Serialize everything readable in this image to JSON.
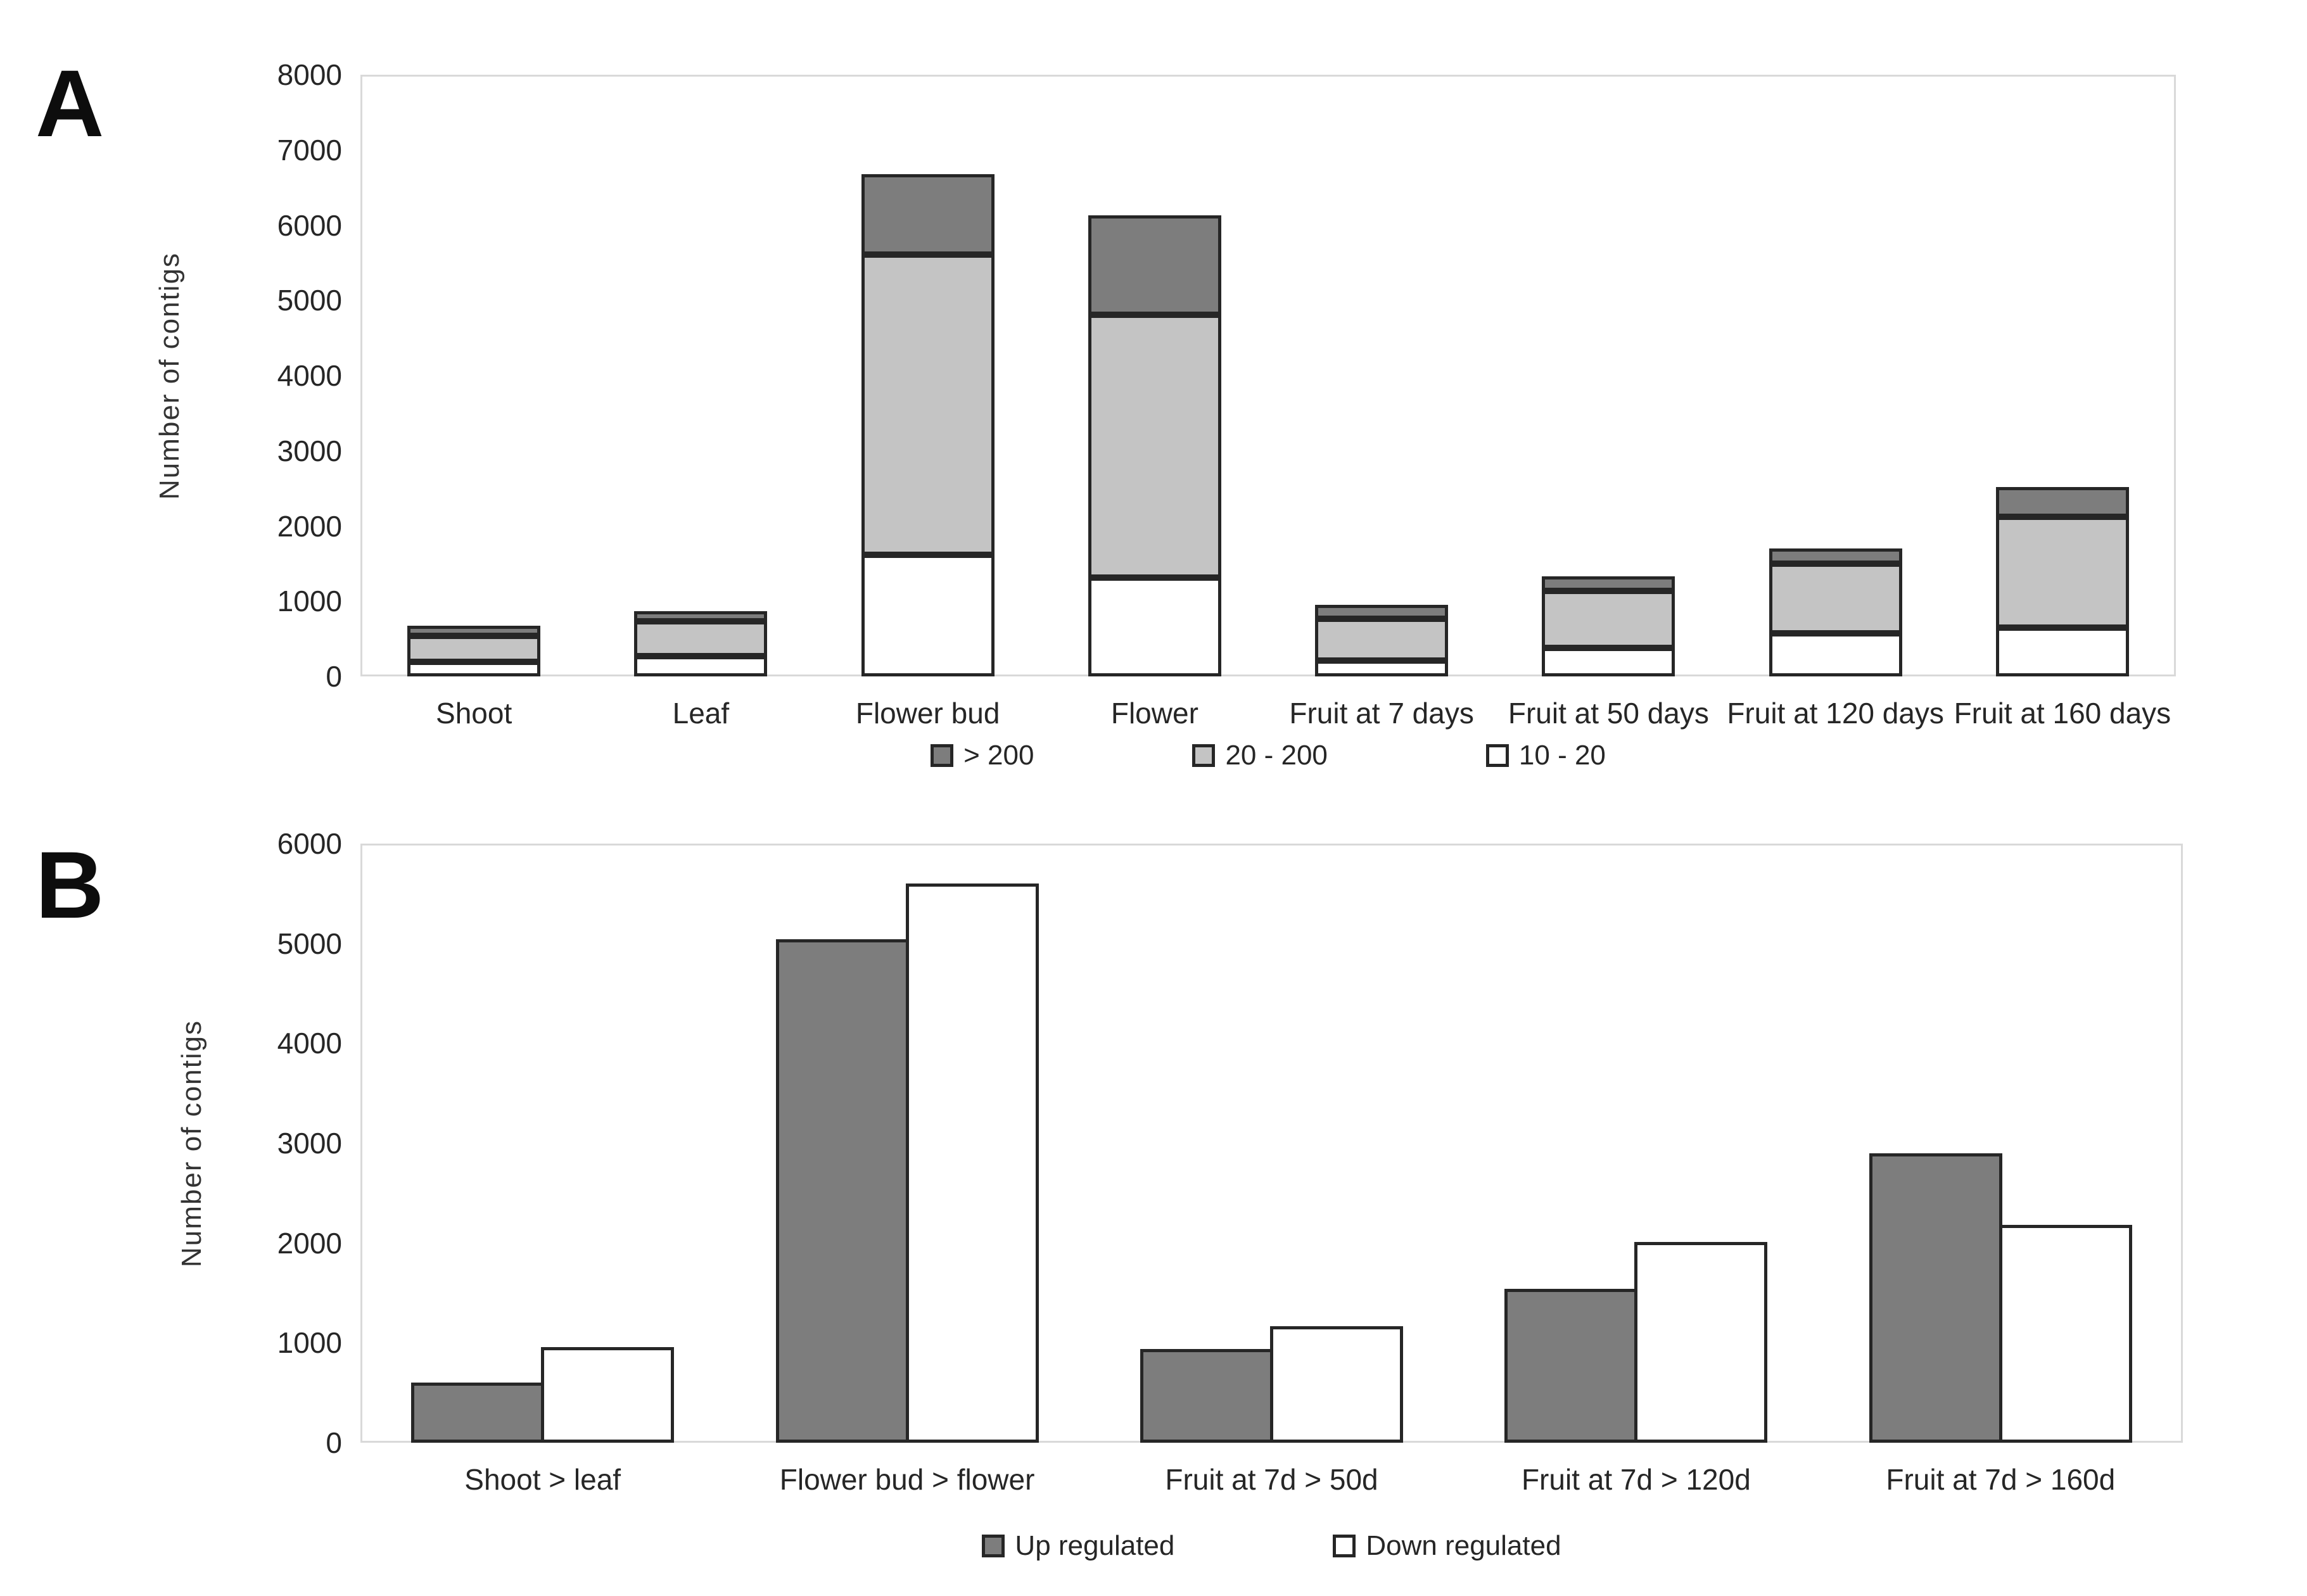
{
  "panels": [
    {
      "letter": "A"
    },
    {
      "letter": "B"
    }
  ],
  "colors": {
    "dark_gray": "#7d7d7d",
    "light_gray": "#c4c4c4",
    "white": "#ffffff",
    "bar_border": "#262626",
    "plot_border": "#d9d9d9",
    "text": "#262626"
  },
  "chart_data": [
    {
      "id": "A",
      "type": "bar",
      "stacked": true,
      "title": "",
      "xlabel": "",
      "ylabel": "Number of contigs",
      "ylim": [
        0,
        8000
      ],
      "yticks": [
        0,
        1000,
        2000,
        3000,
        4000,
        5000,
        6000,
        7000,
        8000
      ],
      "grid": false,
      "legend_position": "bottom",
      "categories": [
        "Shoot",
        "Leaf",
        "Flower bud",
        "Flower",
        "Fruit at 7 days",
        "Fruit at 50 days",
        "Fruit at 120 days",
        "Fruit at 160 days"
      ],
      "series": [
        {
          "name": "10 - 20",
          "color": "#ffffff",
          "values": [
            190,
            270,
            1620,
            1310,
            210,
            380,
            570,
            650
          ]
        },
        {
          "name": "20 - 200",
          "color": "#c4c4c4",
          "values": [
            350,
            460,
            3990,
            3500,
            560,
            760,
            930,
            1470
          ]
        },
        {
          "name": "> 200",
          "color": "#7d7d7d",
          "values": [
            130,
            140,
            1070,
            1320,
            180,
            190,
            200,
            400
          ]
        }
      ],
      "totals": [
        670,
        870,
        6680,
        6130,
        950,
        1330,
        1700,
        2520
      ],
      "legend": [
        {
          "label": "> 200",
          "color": "#7d7d7d"
        },
        {
          "label": "20 - 200",
          "color": "#c4c4c4"
        },
        {
          "label": "10 - 20",
          "color": "#ffffff"
        }
      ]
    },
    {
      "id": "B",
      "type": "bar",
      "stacked": false,
      "title": "",
      "xlabel": "",
      "ylabel": "Number of contigs",
      "ylim": [
        0,
        6000
      ],
      "yticks": [
        0,
        1000,
        2000,
        3000,
        4000,
        5000,
        6000
      ],
      "grid": false,
      "legend_position": "bottom",
      "categories": [
        "Shoot > leaf",
        "Flower bud > flower",
        "Fruit at 7d > 50d",
        "Fruit at 7d > 120d",
        "Fruit at 7d > 160d"
      ],
      "series": [
        {
          "name": "Up regulated",
          "color": "#7d7d7d",
          "values": [
            600,
            5040,
            940,
            1540,
            2900
          ]
        },
        {
          "name": "Down regulated",
          "color": "#ffffff",
          "values": [
            960,
            5600,
            1170,
            2010,
            2180
          ]
        }
      ],
      "legend": [
        {
          "label": "Up regulated",
          "color": "#7d7d7d"
        },
        {
          "label": "Down regulated",
          "color": "#ffffff"
        }
      ]
    }
  ]
}
